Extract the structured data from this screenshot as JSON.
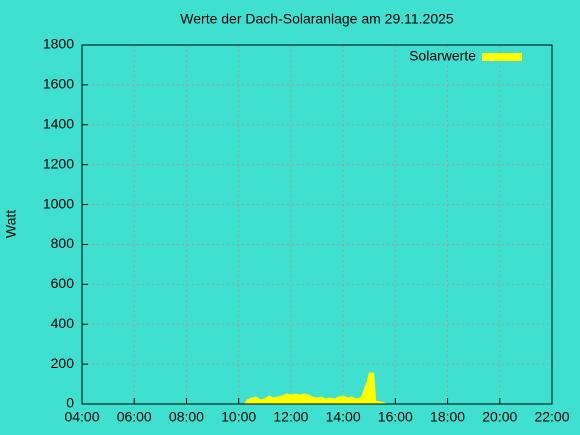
{
  "chart_data": {
    "type": "area",
    "title": "Werte der Dach-Solaranlage am 29.11.2025",
    "y_label": "Watt",
    "x": [
      10.25,
      10.33,
      10.5,
      10.67,
      10.83,
      11.0,
      11.17,
      11.33,
      11.5,
      11.67,
      11.83,
      12.0,
      12.17,
      12.33,
      12.5,
      12.67,
      12.83,
      13.0,
      13.17,
      13.33,
      13.5,
      13.67,
      13.83,
      14.0,
      14.17,
      14.33,
      14.5,
      14.67,
      14.75,
      14.83,
      14.92,
      15.0,
      15.08,
      15.17,
      15.25,
      15.42,
      15.58,
      15.67
    ],
    "series": [
      {
        "name": "Solarwerte",
        "color": "#ffff00",
        "values": [
          5,
          20,
          30,
          35,
          20,
          25,
          40,
          30,
          35,
          40,
          50,
          45,
          50,
          45,
          50,
          45,
          35,
          30,
          35,
          25,
          30,
          25,
          35,
          40,
          30,
          35,
          25,
          30,
          50,
          80,
          110,
          155,
          155,
          155,
          15,
          10,
          5,
          0
        ]
      }
    ],
    "xlim": [
      4,
      22
    ],
    "xticks": [
      {
        "value": 4,
        "label": "04:00"
      },
      {
        "value": 6,
        "label": "06:00"
      },
      {
        "value": 8,
        "label": "08:00"
      },
      {
        "value": 10,
        "label": "10:00"
      },
      {
        "value": 12,
        "label": "12:00"
      },
      {
        "value": 14,
        "label": "14:00"
      },
      {
        "value": 16,
        "label": "16:00"
      },
      {
        "value": 18,
        "label": "18:00"
      },
      {
        "value": 20,
        "label": "20:00"
      },
      {
        "value": 22,
        "label": "22:00"
      }
    ],
    "ylim": [
      0,
      1800
    ],
    "yticks": [
      0,
      200,
      400,
      600,
      800,
      1000,
      1200,
      1400,
      1600,
      1800
    ],
    "grid": true,
    "legend": "top-right"
  }
}
